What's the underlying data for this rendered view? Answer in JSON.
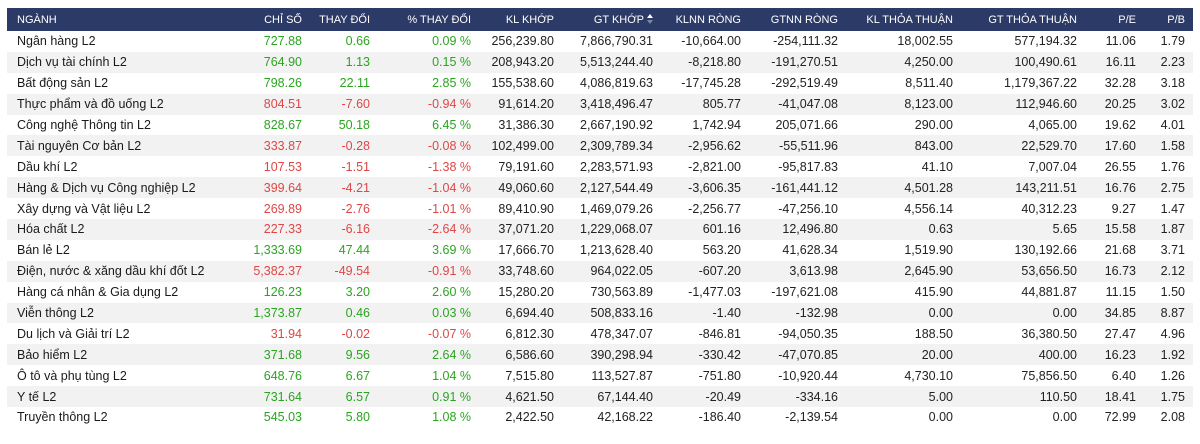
{
  "colors": {
    "header_bg": "#2b3a67",
    "up": "#2aa520",
    "down": "#e04646",
    "stripe": "#f2f2f2"
  },
  "columns": [
    "NGÀNH",
    "CHỈ SỐ",
    "THAY ĐỔI",
    "% THAY ĐỔI",
    "KL KHỚP",
    "GT KHỚP",
    "KLNN RÒNG",
    "GTNN RÒNG",
    "KL THỎA THUẬN",
    "GT THỎA THUẬN",
    "P/E",
    "P/B"
  ],
  "sort_icon": "sort-desc-icon",
  "rows": [
    {
      "name": "Ngân hàng L2",
      "index": "727.88",
      "change": "0.66",
      "pct": "0.09 %",
      "trend": "up",
      "vol": "256,239.80",
      "val": "7,866,790.31",
      "fvol": "-10,664.00",
      "fval": "-254,111.32",
      "pvol": "18,002.55",
      "pval": "577,194.32",
      "pe": "11.06",
      "pb": "1.79"
    },
    {
      "name": "Dịch vụ tài chính L2",
      "index": "764.90",
      "change": "1.13",
      "pct": "0.15 %",
      "trend": "up",
      "vol": "208,943.20",
      "val": "5,513,244.40",
      "fvol": "-8,218.80",
      "fval": "-191,270.51",
      "pvol": "4,250.00",
      "pval": "100,490.61",
      "pe": "16.11",
      "pb": "2.23"
    },
    {
      "name": "Bất động sản L2",
      "index": "798.26",
      "change": "22.11",
      "pct": "2.85 %",
      "trend": "up",
      "vol": "155,538.60",
      "val": "4,086,819.63",
      "fvol": "-17,745.28",
      "fval": "-292,519.49",
      "pvol": "8,511.40",
      "pval": "1,179,367.22",
      "pe": "32.28",
      "pb": "3.18"
    },
    {
      "name": "Thực phẩm và đồ uống L2",
      "index": "804.51",
      "change": "-7.60",
      "pct": "-0.94 %",
      "trend": "down",
      "vol": "91,614.20",
      "val": "3,418,496.47",
      "fvol": "805.77",
      "fval": "-41,047.08",
      "pvol": "8,123.00",
      "pval": "112,946.60",
      "pe": "20.25",
      "pb": "3.02"
    },
    {
      "name": "Công nghệ Thông tin L2",
      "index": "828.67",
      "change": "50.18",
      "pct": "6.45 %",
      "trend": "up",
      "vol": "31,386.30",
      "val": "2,667,190.92",
      "fvol": "1,742.94",
      "fval": "205,071.66",
      "pvol": "290.00",
      "pval": "4,065.00",
      "pe": "19.62",
      "pb": "4.01"
    },
    {
      "name": "Tài nguyên Cơ bản L2",
      "index": "333.87",
      "change": "-0.28",
      "pct": "-0.08 %",
      "trend": "down",
      "vol": "102,499.00",
      "val": "2,309,789.34",
      "fvol": "-2,956.62",
      "fval": "-55,511.96",
      "pvol": "843.00",
      "pval": "22,529.70",
      "pe": "17.60",
      "pb": "1.58"
    },
    {
      "name": "Dầu khí L2",
      "index": "107.53",
      "change": "-1.51",
      "pct": "-1.38 %",
      "trend": "down",
      "vol": "79,191.60",
      "val": "2,283,571.93",
      "fvol": "-2,821.00",
      "fval": "-95,817.83",
      "pvol": "41.10",
      "pval": "7,007.04",
      "pe": "26.55",
      "pb": "1.76"
    },
    {
      "name": "Hàng & Dịch vụ Công nghiệp L2",
      "index": "399.64",
      "change": "-4.21",
      "pct": "-1.04 %",
      "trend": "down",
      "vol": "49,060.60",
      "val": "2,127,544.49",
      "fvol": "-3,606.35",
      "fval": "-161,441.12",
      "pvol": "4,501.28",
      "pval": "143,211.51",
      "pe": "16.76",
      "pb": "2.75"
    },
    {
      "name": "Xây dựng và Vật liệu L2",
      "index": "269.89",
      "change": "-2.76",
      "pct": "-1.01 %",
      "trend": "down",
      "vol": "89,410.90",
      "val": "1,469,079.26",
      "fvol": "-2,256.77",
      "fval": "-47,256.10",
      "pvol": "4,556.14",
      "pval": "40,312.23",
      "pe": "9.27",
      "pb": "1.47"
    },
    {
      "name": "Hóa chất L2",
      "index": "227.33",
      "change": "-6.16",
      "pct": "-2.64 %",
      "trend": "down",
      "vol": "37,071.20",
      "val": "1,229,068.07",
      "fvol": "601.16",
      "fval": "12,496.80",
      "pvol": "0.63",
      "pval": "5.65",
      "pe": "15.58",
      "pb": "1.87"
    },
    {
      "name": "Bán lẻ L2",
      "index": "1,333.69",
      "change": "47.44",
      "pct": "3.69 %",
      "trend": "up",
      "vol": "17,666.70",
      "val": "1,213,628.40",
      "fvol": "563.20",
      "fval": "41,628.34",
      "pvol": "1,519.90",
      "pval": "130,192.66",
      "pe": "21.68",
      "pb": "3.71"
    },
    {
      "name": "Điện, nước & xăng dầu khí đốt L2",
      "index": "5,382.37",
      "change": "-49.54",
      "pct": "-0.91 %",
      "trend": "down",
      "vol": "33,748.60",
      "val": "964,022.05",
      "fvol": "-607.20",
      "fval": "3,613.98",
      "pvol": "2,645.90",
      "pval": "53,656.50",
      "pe": "16.73",
      "pb": "2.12"
    },
    {
      "name": "Hàng cá nhân & Gia dụng L2",
      "index": "126.23",
      "change": "3.20",
      "pct": "2.60 %",
      "trend": "up",
      "vol": "15,280.20",
      "val": "730,563.89",
      "fvol": "-1,477.03",
      "fval": "-197,621.08",
      "pvol": "415.90",
      "pval": "44,881.87",
      "pe": "11.15",
      "pb": "1.50"
    },
    {
      "name": "Viễn thông L2",
      "index": "1,373.87",
      "change": "0.46",
      "pct": "0.03 %",
      "trend": "up",
      "vol": "6,694.40",
      "val": "508,833.16",
      "fvol": "-1.40",
      "fval": "-132.98",
      "pvol": "0.00",
      "pval": "0.00",
      "pe": "34.85",
      "pb": "8.87"
    },
    {
      "name": "Du lịch và Giải trí L2",
      "index": "31.94",
      "change": "-0.02",
      "pct": "-0.07 %",
      "trend": "down",
      "vol": "6,812.30",
      "val": "478,347.07",
      "fvol": "-846.81",
      "fval": "-94,050.35",
      "pvol": "188.50",
      "pval": "36,380.50",
      "pe": "27.47",
      "pb": "4.96"
    },
    {
      "name": "Bảo hiểm L2",
      "index": "371.68",
      "change": "9.56",
      "pct": "2.64 %",
      "trend": "up",
      "vol": "6,586.60",
      "val": "390,298.94",
      "fvol": "-330.42",
      "fval": "-47,070.85",
      "pvol": "20.00",
      "pval": "400.00",
      "pe": "16.23",
      "pb": "1.92"
    },
    {
      "name": "Ô tô và phụ tùng L2",
      "index": "648.76",
      "change": "6.67",
      "pct": "1.04 %",
      "trend": "up",
      "vol": "7,515.80",
      "val": "113,527.87",
      "fvol": "-751.80",
      "fval": "-10,920.44",
      "pvol": "4,730.10",
      "pval": "75,856.50",
      "pe": "6.40",
      "pb": "1.26"
    },
    {
      "name": "Y tế L2",
      "index": "731.64",
      "change": "6.57",
      "pct": "0.91 %",
      "trend": "up",
      "vol": "4,621.50",
      "val": "67,144.40",
      "fvol": "-20.49",
      "fval": "-334.16",
      "pvol": "5.00",
      "pval": "110.50",
      "pe": "18.41",
      "pb": "1.75"
    },
    {
      "name": "Truyền thông L2",
      "index": "545.03",
      "change": "5.80",
      "pct": "1.08 %",
      "trend": "up",
      "vol": "2,422.50",
      "val": "42,168.22",
      "fvol": "-186.40",
      "fval": "-2,139.54",
      "pvol": "0.00",
      "pval": "0.00",
      "pe": "72.99",
      "pb": "2.08"
    }
  ]
}
